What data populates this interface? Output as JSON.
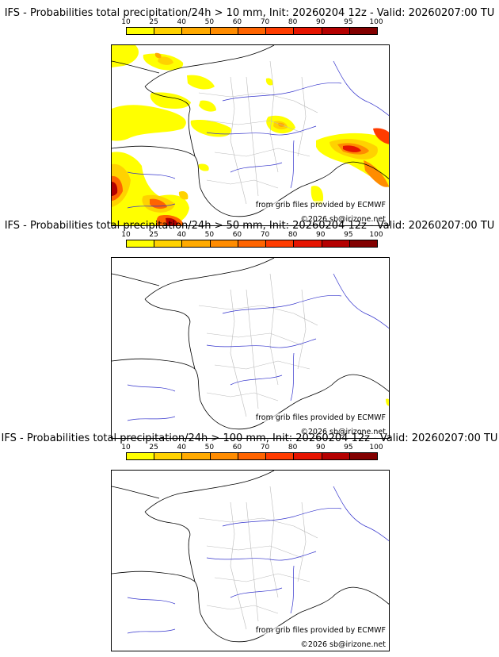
{
  "legend": {
    "ticks": [
      "10",
      "25",
      "40",
      "50",
      "60",
      "70",
      "80",
      "90",
      "95",
      "100"
    ],
    "colors": [
      "#ffff00",
      "#ffd200",
      "#ffaa00",
      "#ff8c00",
      "#ff6400",
      "#ff3c00",
      "#e61400",
      "#b40000",
      "#820000"
    ]
  },
  "panels": [
    {
      "title": "IFS - Probabilities total precipitation/24h > 10 mm, Init: 20260204 12z - Valid: 20260207:00 TU",
      "source": "from grib files provided by ECMWF",
      "credit": "©2026 sb@irizone.net"
    },
    {
      "title": "IFS - Probabilities total precipitation/24h > 50 mm, Init: 20260204 12z - Valid: 20260207:00 TU",
      "source": "from grib files provided by ECMWF",
      "credit": "©2026 sb@irizone.net"
    },
    {
      "title": "IFS - Probabilities total precipitation/24h > 100 mm, Init: 20260204 12z - Valid: 20260207:00 TU",
      "source": "from grib files provided by ECMWF",
      "credit": "©2026 sb@irizone.net"
    }
  ]
}
